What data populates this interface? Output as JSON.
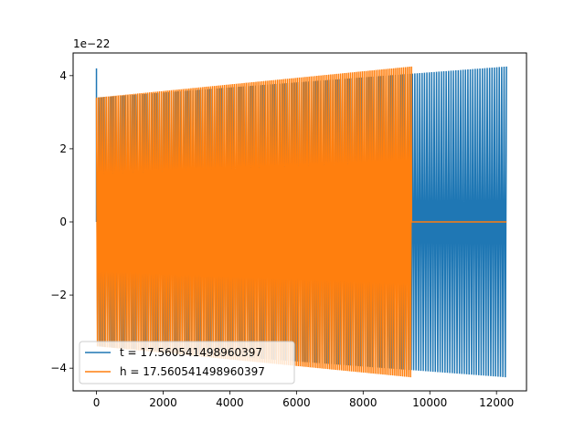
{
  "chart_data": {
    "type": "line",
    "title": "",
    "xlabel": "",
    "ylabel": "",
    "y_offset_label": "1e−22",
    "xlim": [
      -700,
      12900
    ],
    "ylim": [
      -4.62,
      4.62
    ],
    "xticks": [
      0,
      2000,
      4000,
      6000,
      8000,
      10000,
      12000
    ],
    "xtick_labels": [
      "0",
      "2000",
      "4000",
      "6000",
      "8000",
      "10000",
      "12000"
    ],
    "yticks": [
      -4,
      -2,
      0,
      2,
      4
    ],
    "ytick_labels": [
      "−4",
      "−2",
      "0",
      "2",
      "4"
    ],
    "grid": false,
    "legend_position": "lower-left",
    "series": [
      {
        "name": "t = 17.560541498960397",
        "color": "#1f77b4",
        "x_range": [
          0,
          12300
        ],
        "start_spike": 4.2,
        "amplitude_start": 3.4,
        "amplitude_end": 4.25,
        "cycles": 170
      },
      {
        "name": "h = 17.560541498960397",
        "color": "#ff7f0e",
        "x_range": [
          0,
          9450
        ],
        "flat_after_x": 9450,
        "flat_until_x": 12300,
        "flat_value": 0,
        "amplitude_start": 3.4,
        "amplitude_end": 4.25,
        "cycles": 160
      }
    ]
  }
}
